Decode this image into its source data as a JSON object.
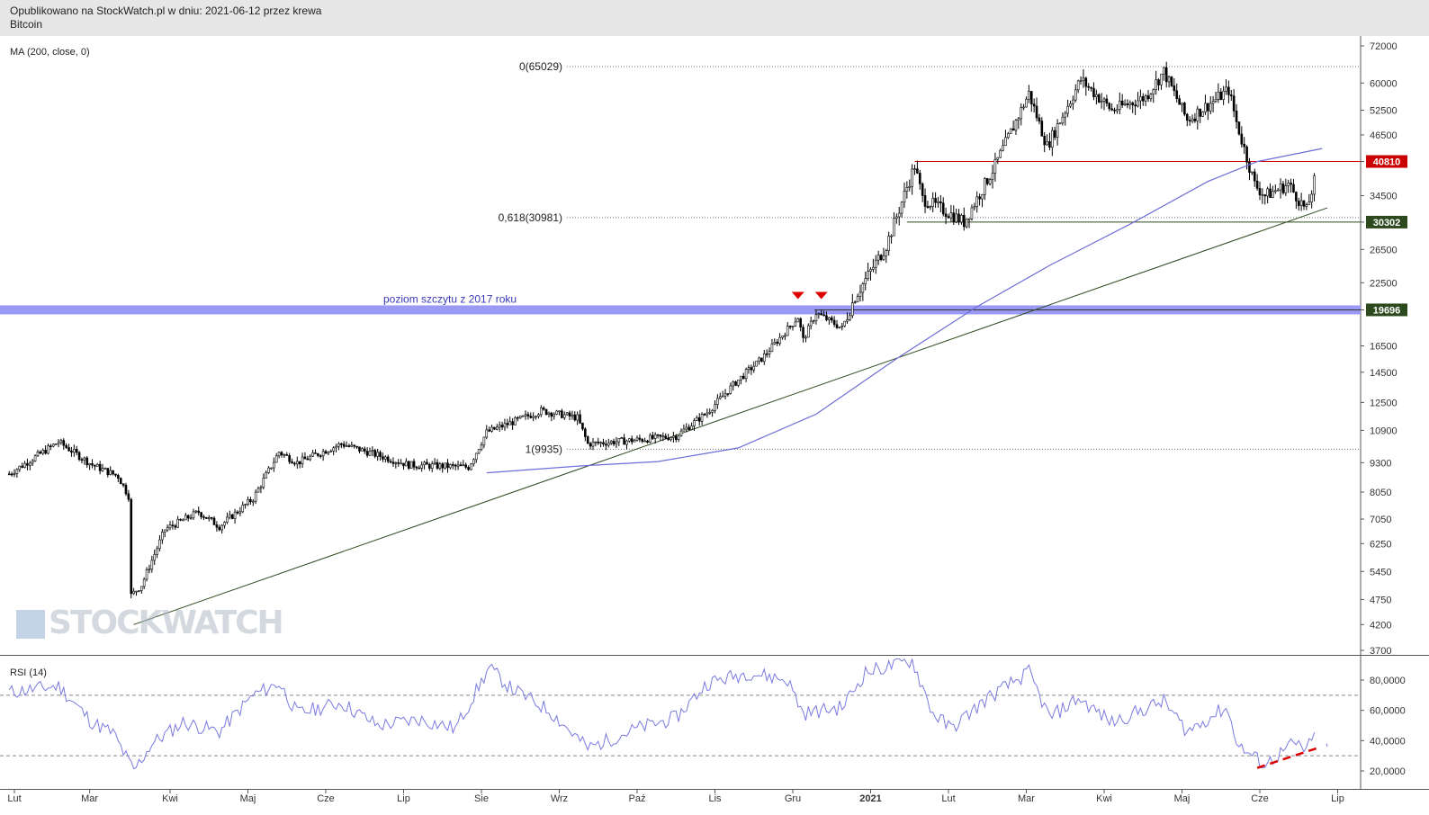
{
  "header": {
    "line1": "Opublikowano na StockWatch.pl w dniu: 2021-06-12 przez krewa",
    "line2": "Bitcoin"
  },
  "watermark": "STOCKWATCH",
  "colors": {
    "header_bg": "#e6e6e6",
    "candle": "#000000",
    "ma": "#6d6dd8",
    "rsi": "#7a7ae0",
    "support_band": "#9a9af5",
    "resistance": "#cc0000",
    "support_line": "#2d4a1e",
    "marker": "#dd0000",
    "badge_red": "#cc0000",
    "badge_green": "#2d4a1e"
  },
  "chart_data": [
    {
      "type": "candlestick",
      "title": "",
      "indicator_label": "MA (200, close, 0)",
      "x_ticks": [
        "Lut",
        "Mar",
        "Kwi",
        "Maj",
        "Cze",
        "Lip",
        "Sie",
        "Wrz",
        "Paź",
        "Lis",
        "Gru",
        "2021",
        "Lut",
        "Mar",
        "Kwi",
        "Maj",
        "Cze",
        "Lip"
      ],
      "y_ticks": [
        72000,
        60000,
        52500,
        46500,
        40810,
        34500,
        30302,
        26500,
        22500,
        19696,
        16500,
        14500,
        12500,
        10900,
        9300,
        8050,
        7050,
        6250,
        5450,
        4750,
        4200,
        3700
      ],
      "y_scale": "log",
      "ylim": [
        3700,
        72000
      ],
      "price_path": [
        [
          "2020-01-25",
          8800
        ],
        [
          "2020-02-13",
          10300
        ],
        [
          "2020-02-26",
          9200
        ],
        [
          "2020-03-07",
          8700
        ],
        [
          "2020-03-11",
          7900
        ],
        [
          "2020-03-12",
          4850
        ],
        [
          "2020-03-16",
          5100
        ],
        [
          "2020-03-25",
          6700
        ],
        [
          "2020-04-07",
          7300
        ],
        [
          "2020-04-15",
          6800
        ],
        [
          "2020-04-28",
          7800
        ],
        [
          "2020-05-08",
          9800
        ],
        [
          "2020-05-15",
          9300
        ],
        [
          "2020-06-01",
          10200
        ],
        [
          "2020-06-27",
          9200
        ],
        [
          "2020-07-20",
          9100
        ],
        [
          "2020-07-27",
          10800
        ],
        [
          "2020-08-17",
          12000
        ],
        [
          "2020-08-31",
          11600
        ],
        [
          "2020-09-04",
          10200
        ],
        [
          "2020-09-23",
          10400
        ],
        [
          "2020-10-08",
          10600
        ],
        [
          "2020-10-20",
          11900
        ],
        [
          "2020-10-31",
          13800
        ],
        [
          "2020-11-10",
          15500
        ],
        [
          "2020-11-24",
          19000
        ],
        [
          "2020-11-26",
          17000
        ],
        [
          "2020-12-01",
          19400
        ],
        [
          "2020-12-11",
          18000
        ],
        [
          "2020-12-16",
          21000
        ],
        [
          "2020-12-28",
          27000
        ],
        [
          "2021-01-08",
          40000
        ],
        [
          "2021-01-11",
          34000
        ],
        [
          "2021-01-22",
          31500
        ],
        [
          "2021-01-27",
          30300
        ],
        [
          "2021-02-08",
          40000
        ],
        [
          "2021-02-21",
          57000
        ],
        [
          "2021-02-28",
          44000
        ],
        [
          "2021-03-13",
          61000
        ],
        [
          "2021-03-25",
          52500
        ],
        [
          "2021-04-07",
          56000
        ],
        [
          "2021-04-14",
          63500
        ],
        [
          "2021-04-23",
          50000
        ],
        [
          "2021-05-09",
          58000
        ],
        [
          "2021-05-12",
          49500
        ],
        [
          "2021-05-19",
          36500
        ],
        [
          "2021-05-23",
          34500
        ],
        [
          "2021-06-01",
          36500
        ],
        [
          "2021-06-08",
          32000
        ],
        [
          "2021-06-11",
          37000
        ],
        [
          "2021-06-12",
          35500
        ]
      ],
      "ma200_path": [
        [
          "2020-07-27",
          8850
        ],
        [
          "2020-09-01",
          9150
        ],
        [
          "2020-10-01",
          9350
        ],
        [
          "2020-11-01",
          10000
        ],
        [
          "2020-12-01",
          11800
        ],
        [
          "2021-01-01",
          15500
        ],
        [
          "2021-02-01",
          20000
        ],
        [
          "2021-03-01",
          24500
        ],
        [
          "2021-04-01",
          30000
        ],
        [
          "2021-05-01",
          37000
        ],
        [
          "2021-05-20",
          40800
        ],
        [
          "2021-06-14",
          43500
        ]
      ],
      "annotations": {
        "fib_0": "0(65029)",
        "fib_0618": "0,618(30981)",
        "fib_1": "1(9935)",
        "peak_2017": "poziom szczytu z 2017 roku",
        "badge_resistance": "40810",
        "badge_support": "30302",
        "badge_2017": "19696"
      },
      "levels": {
        "fib_0": 65029,
        "fib_0618": 30981,
        "fib_1": 9935,
        "resistance": 40810,
        "support": 30302,
        "peak_2017": 19696
      },
      "trendline": [
        [
          "2020-03-13",
          4200
        ],
        [
          "2021-06-16",
          32500
        ]
      ]
    },
    {
      "type": "line",
      "indicator_label": "RSI (14)",
      "y_ticks": [
        "80,0000",
        "60,0000",
        "40,0000",
        "20,0000"
      ],
      "ylim": [
        10,
        95
      ],
      "reference_lines": [
        70,
        30
      ],
      "rsi_path": [
        [
          "2020-01-25",
          72
        ],
        [
          "2020-02-13",
          76
        ],
        [
          "2020-02-26",
          52
        ],
        [
          "2020-03-05",
          45
        ],
        [
          "2020-03-13",
          20
        ],
        [
          "2020-03-20",
          38
        ],
        [
          "2020-04-01",
          52
        ],
        [
          "2020-04-15",
          46
        ],
        [
          "2020-04-28",
          70
        ],
        [
          "2020-05-08",
          78
        ],
        [
          "2020-05-15",
          58
        ],
        [
          "2020-06-01",
          65
        ],
        [
          "2020-06-15",
          50
        ],
        [
          "2020-07-01",
          54
        ],
        [
          "2020-07-15",
          48
        ],
        [
          "2020-07-28",
          88
        ],
        [
          "2020-08-05",
          75
        ],
        [
          "2020-08-20",
          60
        ],
        [
          "2020-09-04",
          35
        ],
        [
          "2020-09-23",
          48
        ],
        [
          "2020-10-08",
          55
        ],
        [
          "2020-10-20",
          78
        ],
        [
          "2020-11-05",
          85
        ],
        [
          "2020-11-20",
          80
        ],
        [
          "2020-11-26",
          58
        ],
        [
          "2020-12-11",
          62
        ],
        [
          "2020-12-20",
          85
        ],
        [
          "2021-01-07",
          93
        ],
        [
          "2021-01-15",
          58
        ],
        [
          "2021-01-22",
          48
        ],
        [
          "2021-02-05",
          68
        ],
        [
          "2021-02-21",
          85
        ],
        [
          "2021-03-01",
          55
        ],
        [
          "2021-03-12",
          68
        ],
        [
          "2021-03-25",
          52
        ],
        [
          "2021-04-14",
          66
        ],
        [
          "2021-04-23",
          46
        ],
        [
          "2021-05-08",
          62
        ],
        [
          "2021-05-13",
          36
        ],
        [
          "2021-05-23",
          24
        ],
        [
          "2021-06-03",
          38
        ],
        [
          "2021-06-08",
          34
        ],
        [
          "2021-06-11",
          42
        ],
        [
          "2021-06-12",
          40
        ]
      ],
      "divergence": [
        [
          "2021-05-20",
          22
        ],
        [
          "2021-06-12",
          35
        ]
      ],
      "rsi_tail": [
        [
          "2021-06-15",
          38
        ],
        [
          "2021-06-15",
          36
        ]
      ]
    }
  ]
}
